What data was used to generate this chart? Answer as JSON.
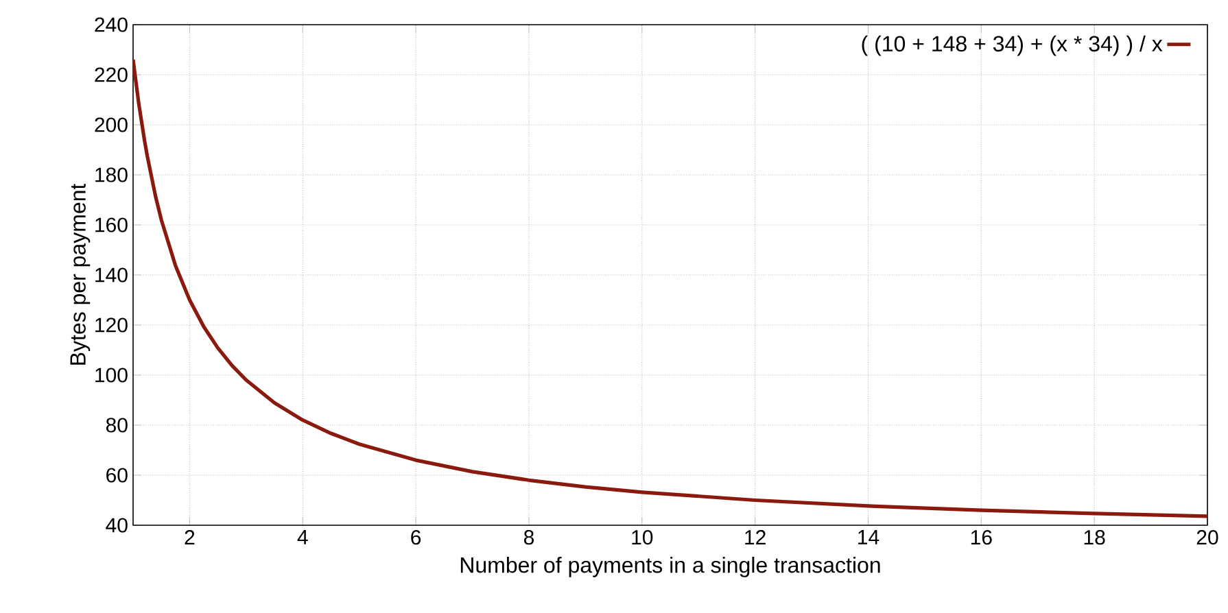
{
  "chart_data": {
    "type": "line",
    "xlabel": "Number of payments in a single transaction",
    "ylabel": "Bytes per payment",
    "xlim": [
      1,
      20
    ],
    "ylim": [
      40,
      240
    ],
    "xticks": [
      2,
      4,
      6,
      8,
      10,
      12,
      14,
      16,
      18,
      20
    ],
    "yticks": [
      40,
      60,
      80,
      100,
      120,
      140,
      160,
      180,
      200,
      220,
      240
    ],
    "grid": true,
    "legend": "top right",
    "marker": "none",
    "line_style": "solid",
    "series": [
      {
        "name": "( (10 + 148 + 34) + (x * 34) ) / x",
        "color": "#8b1a0e",
        "x": [
          1,
          1.1,
          1.2,
          1.25,
          1.4,
          1.5,
          1.75,
          2,
          2.25,
          2.5,
          2.75,
          3,
          3.5,
          4,
          4.5,
          5,
          6,
          7,
          8,
          9,
          10,
          12,
          14,
          16,
          18,
          20
        ],
        "values": [
          226,
          208.5,
          194,
          187.6,
          171.1,
          162,
          143.7,
          130,
          119.3,
          110.8,
          103.8,
          98,
          88.9,
          82,
          76.7,
          72.4,
          66,
          61.4,
          58,
          55.3,
          53.2,
          50,
          47.7,
          46,
          44.7,
          43.6
        ]
      }
    ]
  }
}
